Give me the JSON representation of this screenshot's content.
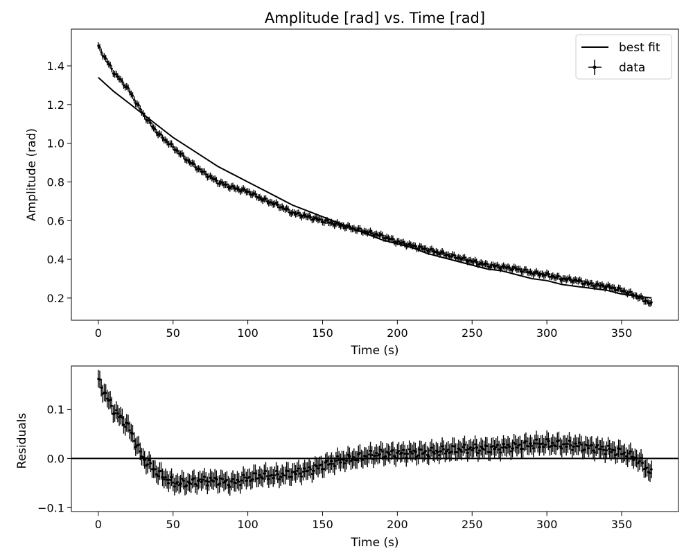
{
  "chart_data": [
    {
      "type": "scatter",
      "title": "Amplitude [rad] vs. Time [rad]",
      "xlabel": "Time (s)",
      "ylabel": "Amplitude (rad)",
      "xlim": [
        -18,
        388
      ],
      "ylim": [
        0.085,
        1.59
      ],
      "xticks": [
        0,
        50,
        100,
        150,
        200,
        250,
        300,
        350
      ],
      "yticks": [
        0.2,
        0.4,
        0.6,
        0.8,
        1.0,
        1.2,
        1.4
      ],
      "xtick_labels": [
        "0",
        "50",
        "100",
        "150",
        "200",
        "250",
        "300",
        "350"
      ],
      "ytick_labels": [
        "0.2",
        "0.4",
        "0.6",
        "0.8",
        "1.0",
        "1.2",
        "1.4"
      ],
      "grid": false,
      "legend": {
        "position": "top-right",
        "entries": [
          "best fit",
          "data"
        ]
      },
      "series": [
        {
          "name": "best fit",
          "style": "line",
          "x": [
            0,
            10,
            20,
            30,
            40,
            50,
            60,
            70,
            80,
            90,
            100,
            110,
            120,
            130,
            140,
            150,
            160,
            170,
            180,
            190,
            200,
            210,
            220,
            230,
            240,
            250,
            260,
            270,
            280,
            290,
            300,
            310,
            320,
            330,
            340,
            350,
            360,
            370
          ],
          "y": [
            1.34,
            1.27,
            1.21,
            1.15,
            1.09,
            1.03,
            0.98,
            0.93,
            0.88,
            0.84,
            0.8,
            0.76,
            0.72,
            0.68,
            0.65,
            0.62,
            0.59,
            0.56,
            0.53,
            0.5,
            0.48,
            0.46,
            0.43,
            0.41,
            0.39,
            0.37,
            0.35,
            0.34,
            0.32,
            0.3,
            0.29,
            0.27,
            0.26,
            0.25,
            0.24,
            0.22,
            0.21,
            0.2
          ]
        },
        {
          "name": "data",
          "style": "errorbar",
          "yerr": 0.018,
          "xerr": 0.5,
          "x": [
            0,
            10,
            20,
            30,
            40,
            50,
            60,
            70,
            80,
            90,
            100,
            110,
            120,
            130,
            140,
            150,
            160,
            170,
            180,
            190,
            200,
            210,
            220,
            230,
            240,
            250,
            260,
            270,
            280,
            290,
            300,
            310,
            320,
            330,
            340,
            350,
            360,
            370
          ],
          "y": [
            1.5,
            1.37,
            1.28,
            1.15,
            1.05,
            0.98,
            0.91,
            0.85,
            0.8,
            0.77,
            0.75,
            0.71,
            0.68,
            0.64,
            0.62,
            0.6,
            0.58,
            0.56,
            0.54,
            0.52,
            0.49,
            0.47,
            0.45,
            0.43,
            0.41,
            0.39,
            0.37,
            0.36,
            0.35,
            0.33,
            0.32,
            0.3,
            0.29,
            0.27,
            0.26,
            0.24,
            0.21,
            0.17
          ]
        }
      ]
    },
    {
      "type": "scatter",
      "title": "",
      "xlabel": "Time (s)",
      "ylabel": "Residuals",
      "xlim": [
        -18,
        388
      ],
      "ylim": [
        -0.108,
        0.188
      ],
      "xticks": [
        0,
        50,
        100,
        150,
        200,
        250,
        300,
        350
      ],
      "yticks": [
        -0.1,
        0.0,
        0.1
      ],
      "xtick_labels": [
        "0",
        "50",
        "100",
        "150",
        "200",
        "250",
        "300",
        "350"
      ],
      "ytick_labels": [
        "−0.1",
        "0.0",
        "0.1"
      ],
      "grid": false,
      "reference_line": 0.0,
      "series": [
        {
          "style": "errorbar",
          "yerr": 0.018,
          "xerr": 0.5,
          "x": [
            0,
            10,
            20,
            30,
            40,
            50,
            60,
            70,
            80,
            90,
            100,
            110,
            120,
            130,
            140,
            150,
            160,
            170,
            180,
            190,
            200,
            210,
            220,
            230,
            240,
            250,
            260,
            270,
            280,
            290,
            300,
            310,
            320,
            330,
            340,
            350,
            360,
            370
          ],
          "y": [
            0.158,
            0.1,
            0.065,
            0.0,
            -0.03,
            -0.05,
            -0.05,
            -0.045,
            -0.045,
            -0.05,
            -0.04,
            -0.035,
            -0.035,
            -0.03,
            -0.025,
            -0.015,
            -0.005,
            0.0,
            0.005,
            0.01,
            0.01,
            0.012,
            0.012,
            0.015,
            0.018,
            0.02,
            0.02,
            0.022,
            0.025,
            0.028,
            0.03,
            0.028,
            0.026,
            0.022,
            0.018,
            0.012,
            0.0,
            -0.03
          ]
        }
      ]
    }
  ]
}
